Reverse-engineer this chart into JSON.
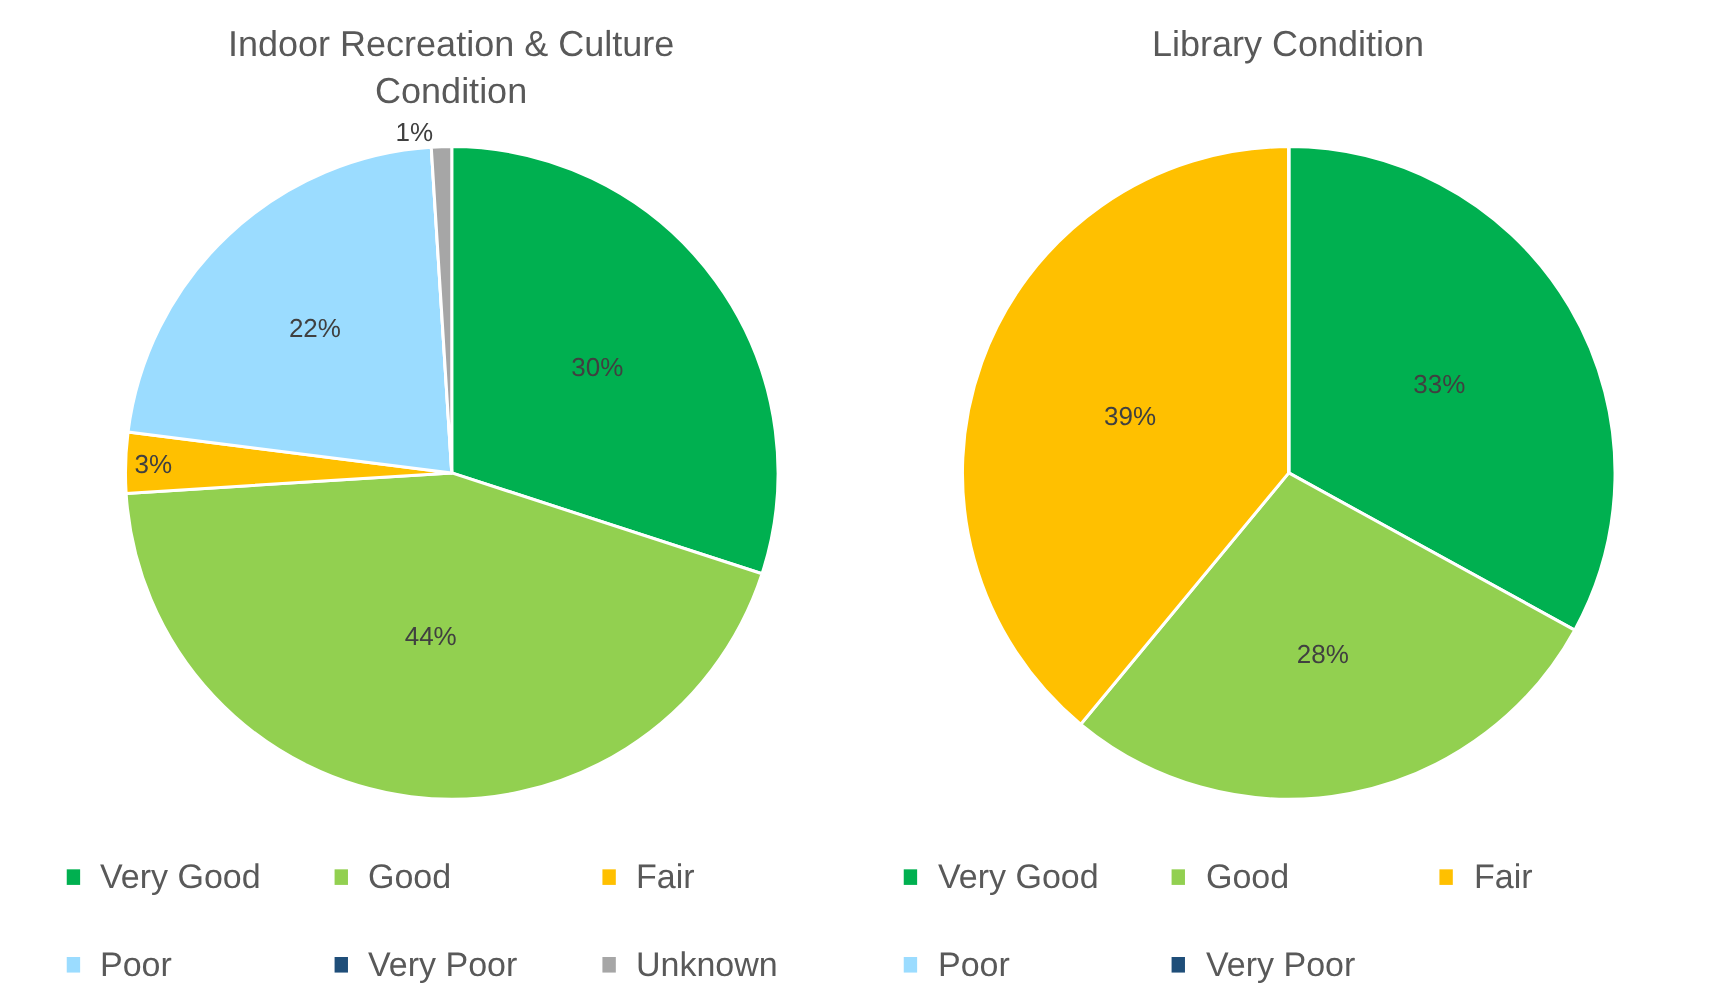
{
  "chart_data": [
    {
      "type": "pie",
      "title": "Indoor Recreation & Culture\nCondition",
      "categories": [
        "Very Good",
        "Good",
        "Fair",
        "Poor",
        "Very Poor",
        "Unknown"
      ],
      "values": [
        30,
        44,
        3,
        22,
        0,
        1
      ],
      "colors": [
        "#00b050",
        "#92d050",
        "#ffc000",
        "#9bdcff",
        "#1f4e79",
        "#a6a6a6"
      ],
      "value_labels": [
        "30%",
        "44%",
        "3%",
        "22%",
        null,
        "1%"
      ],
      "legend": "bottom"
    },
    {
      "type": "pie",
      "title": "Library Condition",
      "categories": [
        "Very Good",
        "Good",
        "Fair",
        "Poor",
        "Very Poor"
      ],
      "values": [
        33,
        28,
        39,
        0,
        0
      ],
      "colors": [
        "#00b050",
        "#92d050",
        "#ffc000",
        "#9bdcff",
        "#1f4e79"
      ],
      "value_labels": [
        "33%",
        "28%",
        "39%",
        null,
        null
      ],
      "legend": "bottom"
    }
  ]
}
